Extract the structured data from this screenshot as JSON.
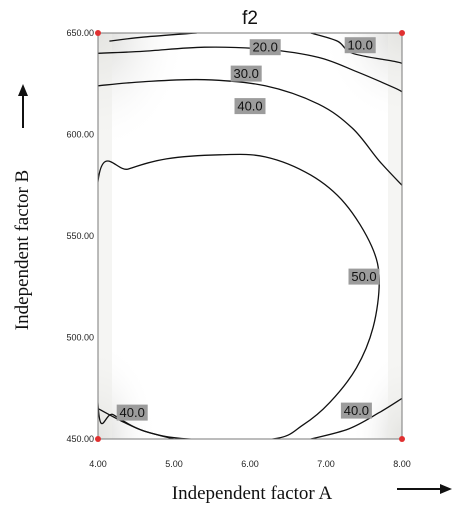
{
  "chart_data": {
    "type": "contour",
    "title": "f2",
    "xlabel": "Independent factor A",
    "ylabel": "Independent factor B",
    "xlim": [
      4.0,
      8.0
    ],
    "ylim": [
      450.0,
      650.0
    ],
    "x_ticks": [
      "4.00",
      "5.00",
      "6.00",
      "7.00",
      "8.00"
    ],
    "y_ticks": [
      "450.00",
      "500.00",
      "550.00",
      "600.00",
      "650.00"
    ],
    "grid": false,
    "contour_labels": [
      {
        "value": "10.0",
        "x": 7.45,
        "y": 644
      },
      {
        "value": "20.0",
        "x": 6.2,
        "y": 643
      },
      {
        "value": "30.0",
        "x": 5.95,
        "y": 630
      },
      {
        "value": "40.0",
        "x": 6.0,
        "y": 614
      },
      {
        "value": "50.0",
        "x": 7.5,
        "y": 530
      },
      {
        "value": "40.0",
        "x": 4.45,
        "y": 463
      },
      {
        "value": "40.0",
        "x": 7.4,
        "y": 464
      }
    ],
    "contour_lines": [
      {
        "level": 20.0,
        "points": [
          [
            4.15,
            646
          ],
          [
            4.6,
            648
          ],
          [
            5.3,
            650
          ]
        ]
      },
      {
        "level": 20.0,
        "points": [
          [
            6.8,
            650
          ],
          [
            7.15,
            646
          ],
          [
            7.35,
            640
          ],
          [
            7.9,
            636
          ],
          [
            8.0,
            635
          ]
        ]
      },
      {
        "level": 30.0,
        "points": [
          [
            4.0,
            640
          ],
          [
            4.6,
            641
          ],
          [
            5.4,
            643
          ],
          [
            6.2,
            642
          ],
          [
            6.9,
            638
          ],
          [
            7.4,
            631
          ],
          [
            7.9,
            623
          ],
          [
            8.0,
            621
          ]
        ]
      },
      {
        "level": 40.0,
        "points": [
          [
            4.0,
            624
          ],
          [
            4.6,
            626
          ],
          [
            5.4,
            627
          ],
          [
            6.2,
            624
          ],
          [
            6.9,
            615
          ],
          [
            7.35,
            603
          ],
          [
            7.7,
            587
          ],
          [
            8.0,
            575
          ]
        ]
      },
      {
        "level": 50.0,
        "closed": true,
        "points": [
          [
            4.0,
            577
          ],
          [
            4.4,
            583
          ],
          [
            4.9,
            588
          ],
          [
            5.6,
            590
          ],
          [
            6.2,
            589
          ],
          [
            6.8,
            580
          ],
          [
            7.25,
            566
          ],
          [
            7.6,
            545
          ],
          [
            7.7,
            528
          ],
          [
            7.62,
            505
          ],
          [
            7.4,
            485
          ],
          [
            7.05,
            468
          ],
          [
            6.7,
            457
          ],
          [
            6.3,
            450
          ],
          [
            5.2,
            450
          ],
          [
            4.6,
            454
          ],
          [
            4.2,
            462
          ],
          [
            4.0,
            467
          ]
        ]
      },
      {
        "level": 40.0,
        "points": [
          [
            4.0,
            465
          ],
          [
            4.3,
            459
          ],
          [
            4.6,
            454
          ],
          [
            5.0,
            450
          ]
        ]
      },
      {
        "level": 40.0,
        "points": [
          [
            6.8,
            450
          ],
          [
            7.3,
            455
          ],
          [
            7.7,
            463
          ],
          [
            8.0,
            470
          ]
        ]
      }
    ],
    "corner_markers": [
      [
        4.0,
        650
      ],
      [
        8.0,
        650
      ],
      [
        4.0,
        450
      ],
      [
        8.0,
        450
      ]
    ]
  },
  "colors": {
    "contour_line": "#111111",
    "label_box": "#9c9c9c",
    "corner_marker": "#e03030",
    "background": "#ffffff",
    "shading": "#e6e6e4"
  }
}
